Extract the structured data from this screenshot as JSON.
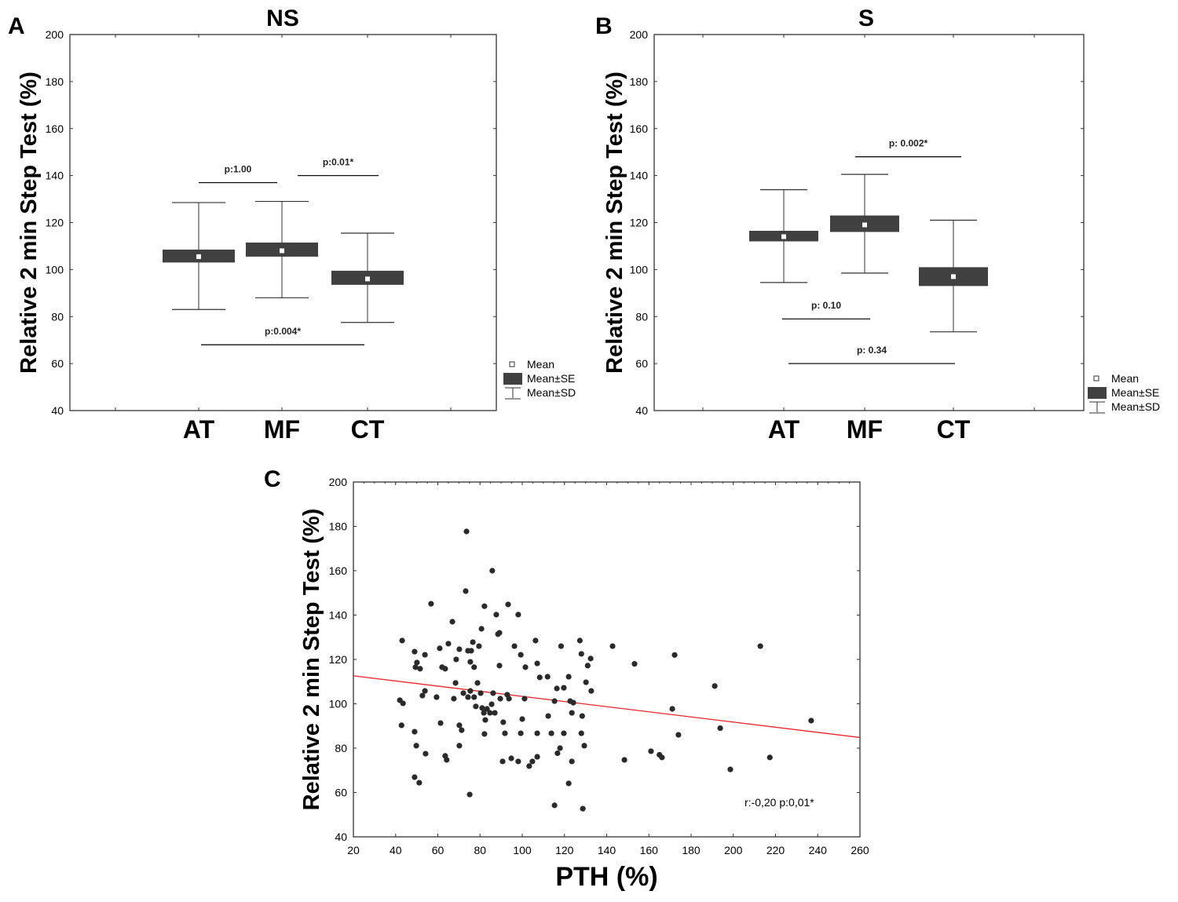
{
  "chart_data": [
    {
      "panel": "A",
      "type": "box",
      "title": "NS",
      "ylabel": "Relative 2 min Step Test (%)",
      "xlabel": "",
      "ylim": [
        40,
        200
      ],
      "yticks": [
        40,
        60,
        80,
        100,
        120,
        140,
        160,
        180,
        200
      ],
      "categories": [
        "AT",
        "MF",
        "CT"
      ],
      "mean": [
        105.5,
        108,
        96
      ],
      "se_low": [
        103,
        105.5,
        93.5
      ],
      "se_high": [
        108.5,
        111.5,
        99.5
      ],
      "sd_low": [
        83,
        88,
        77.5
      ],
      "sd_high": [
        128.5,
        129,
        115.5
      ],
      "comparisons": [
        {
          "from": "AT",
          "to": "MF",
          "label": "p:1.00",
          "y": 137
        },
        {
          "from": "MF",
          "to": "CT",
          "label": "p:0.01*",
          "y": 140
        },
        {
          "from": "AT",
          "to": "CT",
          "label": "p:0.004*",
          "y": 68
        }
      ],
      "legend": [
        "Mean",
        "Mean±SE",
        "Mean±SD"
      ],
      "legend_position": "bottom-right-outside"
    },
    {
      "panel": "B",
      "type": "box",
      "title": "S",
      "ylabel": "Relative 2 min Step Test (%)",
      "xlabel": "",
      "ylim": [
        40,
        200
      ],
      "yticks": [
        40,
        60,
        80,
        100,
        120,
        140,
        160,
        180,
        200
      ],
      "categories": [
        "AT",
        "MF",
        "CT"
      ],
      "mean": [
        114,
        119,
        97
      ],
      "se_low": [
        112,
        116,
        93
      ],
      "se_high": [
        116.5,
        123,
        101
      ],
      "sd_low": [
        94.5,
        98.5,
        73.5
      ],
      "sd_high": [
        134,
        140.5,
        121
      ],
      "comparisons": [
        {
          "from": "MF",
          "to": "CT",
          "label": "p: 0.002*",
          "y": 148
        },
        {
          "from": "AT",
          "to": "MF",
          "label": "p: 0.10",
          "y": 79
        },
        {
          "from": "AT",
          "to": "CT",
          "label": "p: 0.34",
          "y": 60
        }
      ],
      "legend": [
        "Mean",
        "Mean±SE",
        "Mean±SD"
      ],
      "legend_position": "bottom-right-outside"
    },
    {
      "panel": "C",
      "type": "scatter",
      "title": "",
      "ylabel": "Relative 2 min Step Test (%)",
      "xlabel": "PTH (%)",
      "xlim": [
        20,
        260
      ],
      "ylim": [
        40,
        200
      ],
      "xticks": [
        20,
        40,
        60,
        80,
        100,
        120,
        140,
        160,
        180,
        200,
        220,
        240,
        260
      ],
      "yticks": [
        40,
        60,
        80,
        100,
        120,
        140,
        160,
        180,
        200
      ],
      "annotation": "r:-0,20  p:0,01*",
      "regression": {
        "x": [
          20,
          260
        ],
        "y": [
          112.6,
          84.8
        ],
        "color": "#e8242a"
      },
      "points": [
        [
          43.1,
          128.5
        ],
        [
          49,
          123.5
        ],
        [
          50.1,
          118.6
        ],
        [
          49.4,
          116.5
        ],
        [
          51.6,
          115.8
        ],
        [
          53.9,
          122.1
        ],
        [
          56.8,
          145.1
        ],
        [
          60.9,
          125
        ],
        [
          62,
          116.5
        ],
        [
          63.5,
          115.8
        ],
        [
          65,
          127.1
        ],
        [
          66.9,
          137
        ],
        [
          70.2,
          124.6
        ],
        [
          68.7,
          120
        ],
        [
          73.6,
          177.7
        ],
        [
          73.2,
          150.8
        ],
        [
          74.3,
          123.9
        ],
        [
          75.8,
          123.9
        ],
        [
          76.6,
          127.8
        ],
        [
          75.4,
          118.9
        ],
        [
          77.2,
          116.5
        ],
        [
          80.7,
          133.8
        ],
        [
          79.5,
          126
        ],
        [
          82.1,
          144
        ],
        [
          85.8,
          160
        ],
        [
          87.7,
          140.2
        ],
        [
          89.2,
          132
        ],
        [
          88.5,
          131.4
        ],
        [
          89.2,
          117.2
        ],
        [
          93.3,
          144.8
        ],
        [
          96.3,
          126
        ],
        [
          99.3,
          122.1
        ],
        [
          98.1,
          140.2
        ],
        [
          101.5,
          116.5
        ],
        [
          106.3,
          128.5
        ],
        [
          107.1,
          118.2
        ],
        [
          108.3,
          111.9
        ],
        [
          112,
          112.2
        ],
        [
          116.4,
          106.9
        ],
        [
          118.4,
          126
        ],
        [
          119.7,
          107.2
        ],
        [
          122,
          112.2
        ],
        [
          127.3,
          128.5
        ],
        [
          128,
          122.5
        ],
        [
          131,
          117.2
        ],
        [
          132.4,
          120.4
        ],
        [
          130.2,
          109.7
        ],
        [
          132.7,
          105.8
        ],
        [
          42,
          101.6
        ],
        [
          43.5,
          100.2
        ],
        [
          42.8,
          90.3
        ],
        [
          49,
          87.4
        ],
        [
          49.8,
          81.1
        ],
        [
          54.2,
          77.5
        ],
        [
          49,
          66.9
        ],
        [
          51.2,
          64.4
        ],
        [
          52.7,
          103.7
        ],
        [
          53.9,
          105.8
        ],
        [
          59.4,
          103
        ],
        [
          61.3,
          91.3
        ],
        [
          63.5,
          76.5
        ],
        [
          64.2,
          74.7
        ],
        [
          67.6,
          102.3
        ],
        [
          68.4,
          109.4
        ],
        [
          70.2,
          81.1
        ],
        [
          70.2,
          90.3
        ],
        [
          71.3,
          88.1
        ],
        [
          72.1,
          104.8
        ],
        [
          74.3,
          103
        ],
        [
          75.4,
          105.8
        ],
        [
          77.2,
          103
        ],
        [
          78,
          98.8
        ],
        [
          78.8,
          109.4
        ],
        [
          80.3,
          104.8
        ],
        [
          81,
          98.1
        ],
        [
          81.8,
          95.9
        ],
        [
          82.5,
          92.7
        ],
        [
          83.3,
          97.7
        ],
        [
          84.7,
          95.9
        ],
        [
          85.5,
          99.8
        ],
        [
          86.2,
          104.8
        ],
        [
          87,
          95.9
        ],
        [
          89.6,
          102.3
        ],
        [
          91,
          91.7
        ],
        [
          91.8,
          86.7
        ],
        [
          92.9,
          104.1
        ],
        [
          93.7,
          102.3
        ],
        [
          94.8,
          75.4
        ],
        [
          90.7,
          74
        ],
        [
          98.1,
          74
        ],
        [
          99.3,
          86.7
        ],
        [
          100,
          93.1
        ],
        [
          101.1,
          102.3
        ],
        [
          103.3,
          71.9
        ],
        [
          104.8,
          74
        ],
        [
          107.1,
          76.1
        ],
        [
          107.1,
          86.7
        ],
        [
          112.3,
          94.5
        ],
        [
          113.8,
          86.7
        ],
        [
          115.3,
          54.2
        ],
        [
          116.7,
          77.7
        ],
        [
          117.9,
          80
        ],
        [
          119.7,
          86.7
        ],
        [
          122,
          64.1
        ],
        [
          123.5,
          95.9
        ],
        [
          123.5,
          74
        ],
        [
          128,
          86.7
        ],
        [
          128.4,
          94.5
        ],
        [
          128.7,
          52.7
        ],
        [
          129.4,
          81.1
        ],
        [
          124.2,
          100.5
        ],
        [
          75.1,
          59.1
        ],
        [
          82.1,
          86.4
        ],
        [
          115.3,
          101.2
        ],
        [
          122.7,
          101.2
        ],
        [
          142.8,
          126
        ],
        [
          153.2,
          118
        ],
        [
          172.2,
          122
        ],
        [
          191.2,
          108
        ],
        [
          212.8,
          126
        ],
        [
          171.1,
          97.7
        ],
        [
          236.9,
          92.4
        ],
        [
          174,
          86
        ],
        [
          193.8,
          89
        ],
        [
          161,
          78.6
        ],
        [
          165,
          77
        ],
        [
          166.2,
          75.8
        ],
        [
          148.4,
          74.7
        ],
        [
          217.3,
          75.8
        ],
        [
          198.6,
          70.4
        ]
      ]
    }
  ],
  "colors": {
    "box_fill": "#404040",
    "axis": "#333333",
    "points": "#2a2a2a",
    "regression": "#e8242a"
  }
}
